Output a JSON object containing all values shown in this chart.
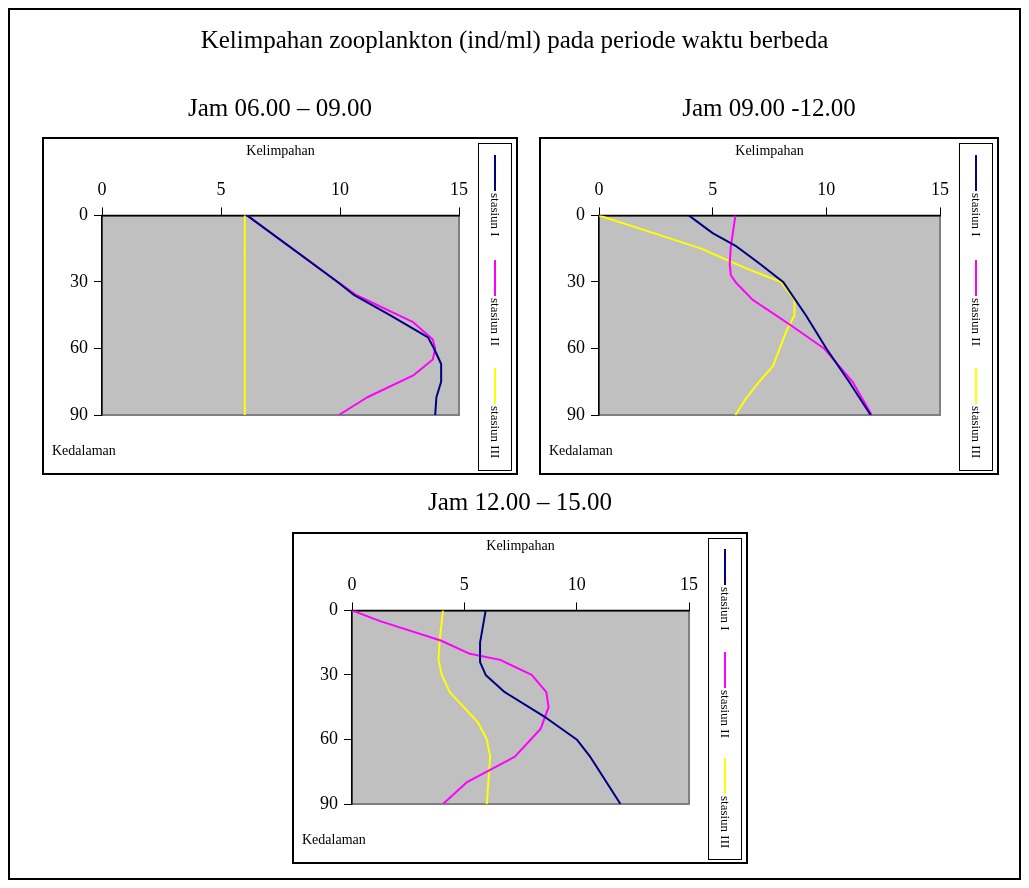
{
  "chart_data": [
    {
      "type": "line",
      "title": "Kelimpahan zooplankton (ind/ml) pada periode waktu berbeda",
      "subtitle": "Jam 06.00 – 09.00",
      "xlabel": "Kelimpahan",
      "ylabel": "Kedalaman",
      "xlim": [
        0,
        15
      ],
      "xticks": [
        0,
        5,
        10,
        15
      ],
      "ylim": [
        90,
        0
      ],
      "yticks": [
        0,
        30,
        60,
        90
      ],
      "legend": "right",
      "marker": "none",
      "line_style": "solid",
      "series": [
        {
          "name": "stasiun I",
          "color": "#000080",
          "x": [
            6.1,
            9.9,
            10.6,
            12.1,
            13.7,
            13.95,
            14.25,
            14.25,
            14.05,
            14.0
          ],
          "values": [
            0,
            30,
            36,
            45,
            55,
            60,
            67,
            75,
            82,
            90
          ]
        },
        {
          "name": "stasiun II",
          "color": "#ff00ff",
          "x": [
            6.1,
            9.9,
            10.7,
            13.05,
            13.9,
            14.0,
            13.9,
            13.1,
            11.15,
            9.95
          ],
          "values": [
            0,
            30,
            36,
            48,
            56,
            60,
            65,
            72,
            82,
            90
          ]
        },
        {
          "name": "stasiun III",
          "color": "#ffff00",
          "x": [
            6.0,
            6.0
          ],
          "values": [
            0,
            90
          ]
        }
      ]
    },
    {
      "type": "line",
      "subtitle": "Jam 09.00 -12.00",
      "xlabel": "Kelimpahan",
      "ylabel": "Kedalaman",
      "xlim": [
        0,
        15
      ],
      "xticks": [
        0,
        5,
        10,
        15
      ],
      "ylim": [
        90,
        0
      ],
      "yticks": [
        0,
        30,
        60,
        90
      ],
      "legend": "right",
      "marker": "none",
      "line_style": "solid",
      "series": [
        {
          "name": "stasiun I",
          "color": "#000080",
          "x": [
            3.95,
            5.0,
            6.05,
            7.1,
            8.1,
            9.1,
            10.0,
            11.0,
            11.95
          ],
          "values": [
            0,
            8,
            14,
            22,
            30,
            45,
            60,
            75,
            90
          ]
        },
        {
          "name": "stasiun II",
          "color": "#ff00ff",
          "x": [
            6.0,
            5.8,
            5.75,
            5.8,
            6.0,
            6.75,
            8.5,
            9.9,
            11.15,
            12.0
          ],
          "values": [
            0,
            14,
            22,
            27,
            30,
            38,
            50,
            60,
            75,
            90
          ]
        },
        {
          "name": "stasiun III",
          "color": "#ffff00",
          "x": [
            0,
            2.1,
            4.5,
            6.5,
            8.0,
            8.6,
            8.6,
            8.25,
            7.65,
            7.05,
            6.5,
            6.0
          ],
          "values": [
            0,
            7,
            15,
            24,
            30,
            38,
            45,
            52,
            68,
            75,
            82,
            90
          ]
        }
      ]
    },
    {
      "type": "line",
      "subtitle": "Jam 12.00 – 15.00",
      "xlabel": "Kelimpahan",
      "ylabel": "Kedalaman",
      "xlim": [
        0,
        15
      ],
      "xticks": [
        0,
        5,
        10,
        15
      ],
      "ylim": [
        90,
        0
      ],
      "yticks": [
        0,
        30,
        60,
        90
      ],
      "legend": "right",
      "marker": "none",
      "line_style": "solid",
      "series": [
        {
          "name": "stasiun I",
          "color": "#000080",
          "x": [
            5.95,
            5.7,
            5.7,
            5.95,
            6.8,
            8.65,
            10.0,
            10.6,
            11.95
          ],
          "values": [
            0,
            15,
            24,
            30,
            38,
            50,
            60,
            68,
            90
          ]
        },
        {
          "name": "stasiun II",
          "color": "#ff00ff",
          "x": [
            0,
            1.25,
            3.95,
            5.2,
            6.6,
            8.0,
            8.65,
            8.75,
            8.4,
            7.25,
            5.1,
            4.05
          ],
          "values": [
            0,
            5,
            14,
            20,
            23,
            30,
            38,
            45,
            55,
            68,
            80,
            90
          ]
        },
        {
          "name": "stasiun III",
          "color": "#ffff00",
          "x": [
            4.05,
            3.9,
            3.85,
            4.0,
            4.35,
            5.6,
            6.0,
            6.15,
            6.0
          ],
          "values": [
            0,
            14,
            23,
            30,
            38,
            52,
            60,
            68,
            90
          ]
        }
      ]
    }
  ]
}
